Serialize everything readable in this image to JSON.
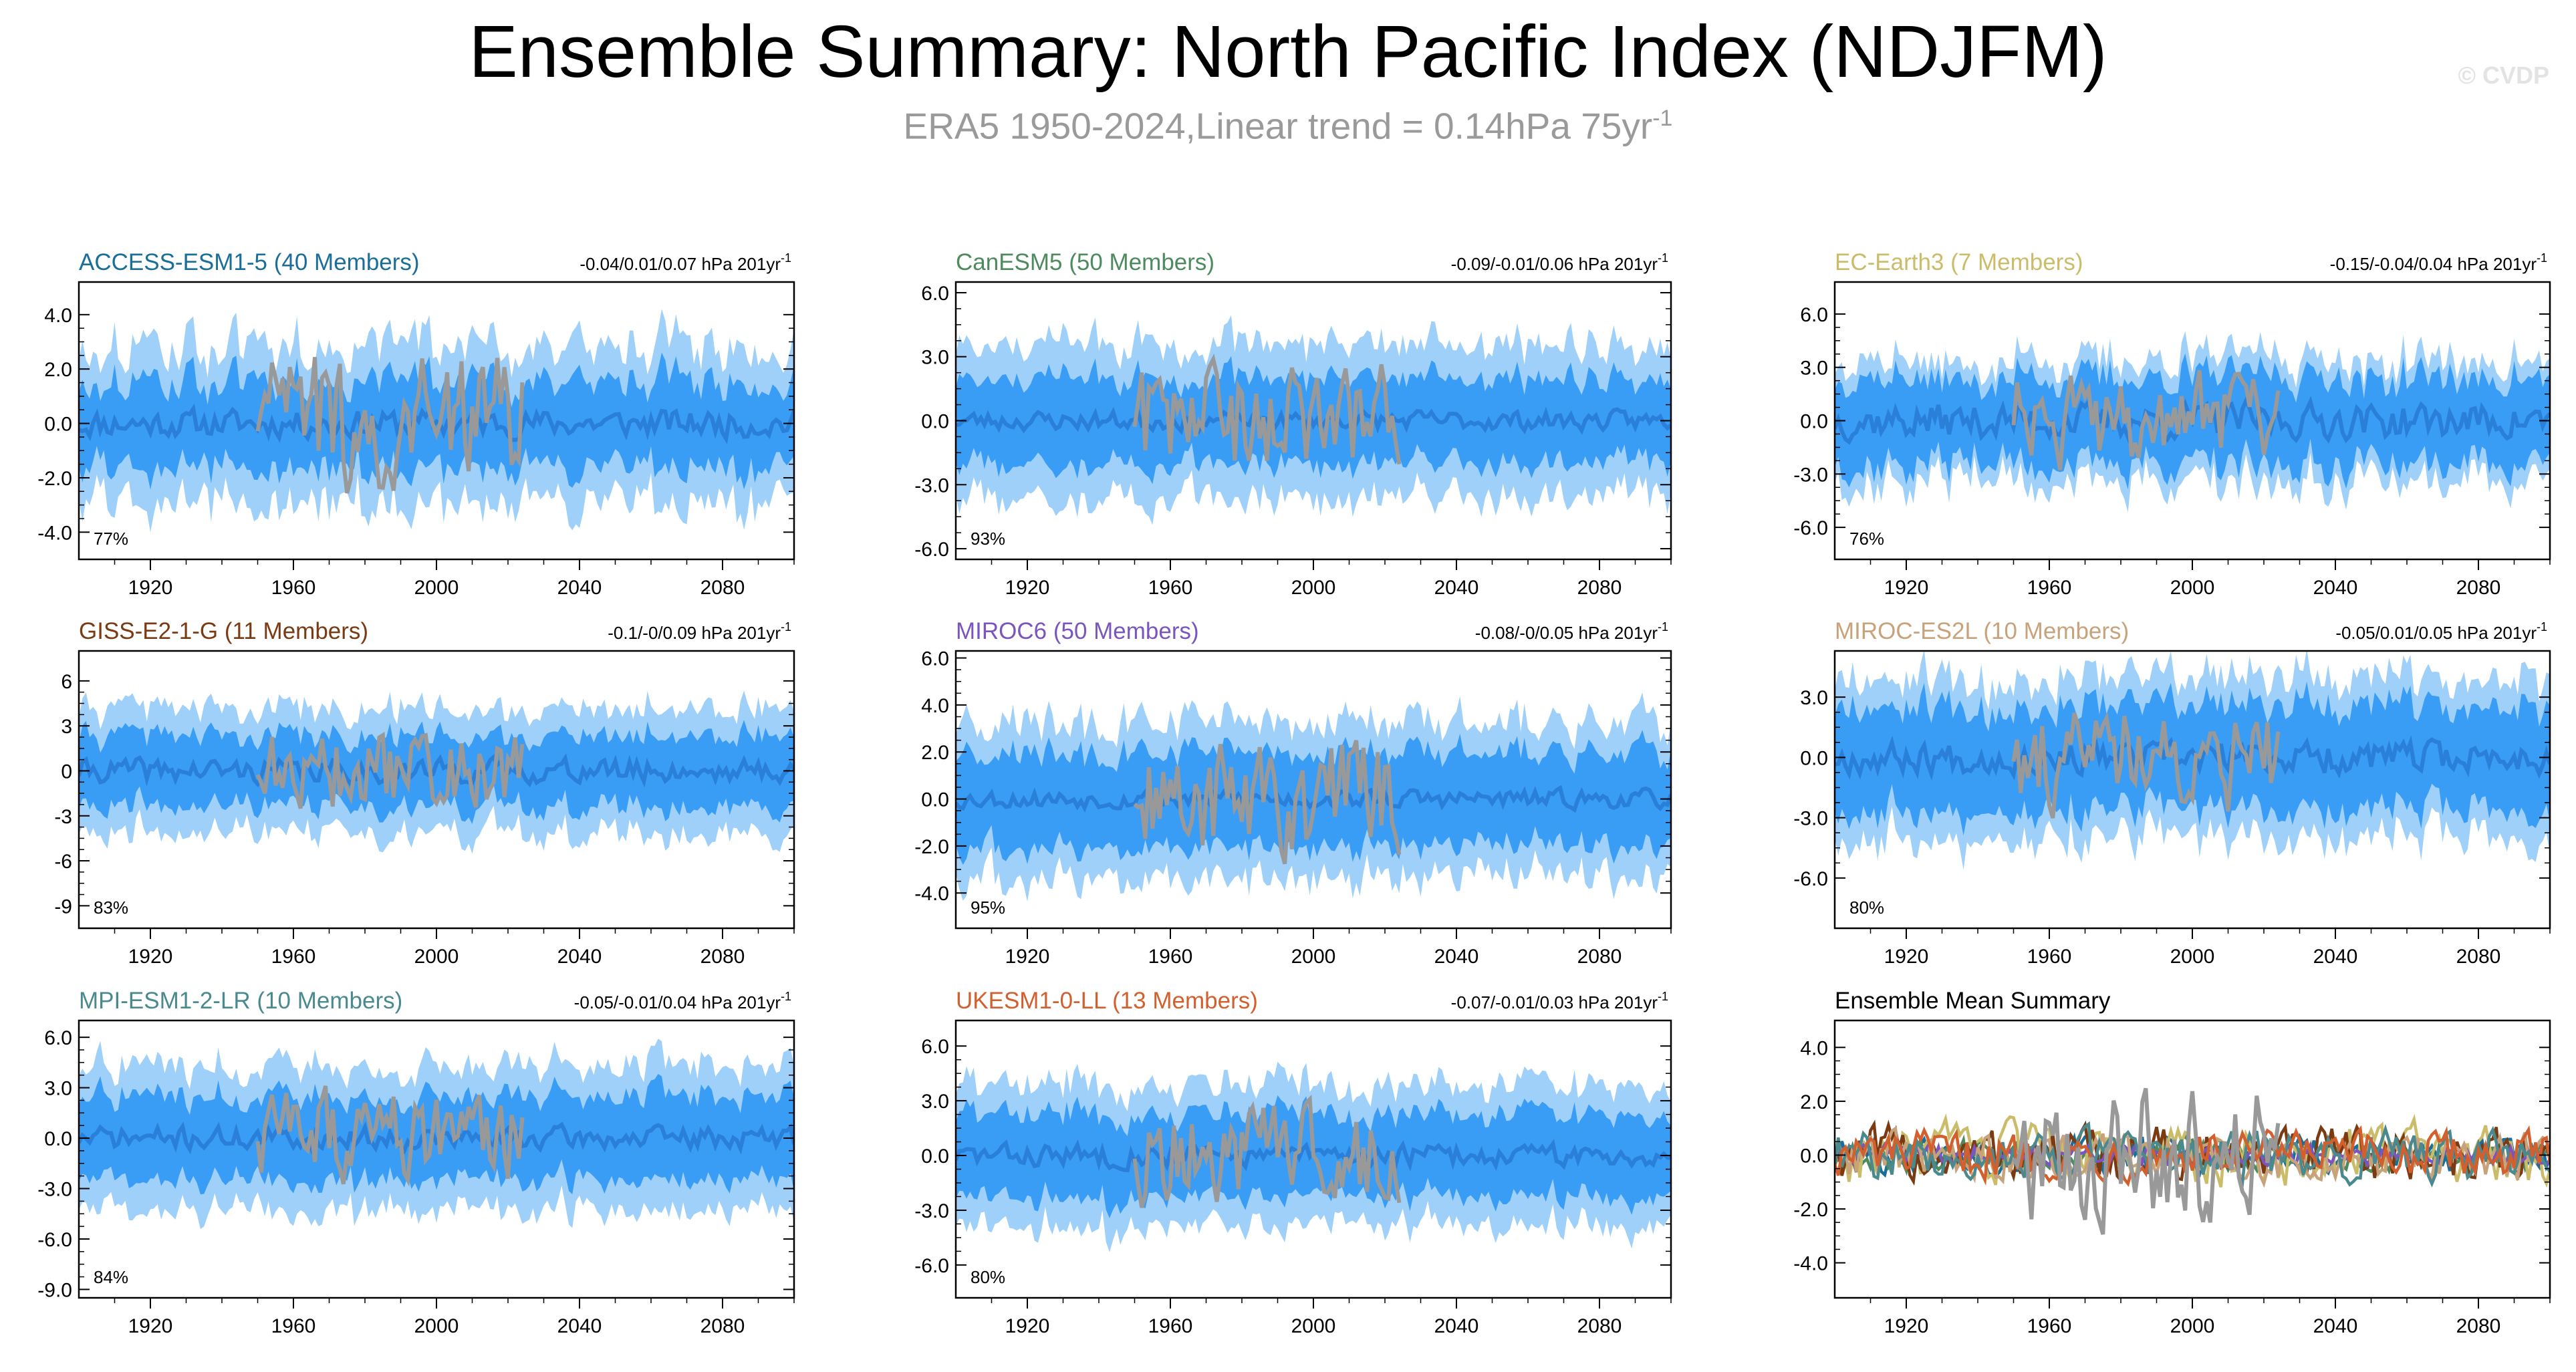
{
  "header": {
    "title": "Ensemble Summary: North Pacific Index (NDJFM)",
    "subtitle_main": "ERA5 1950-2024,Linear trend = 0.14hPa 75yr",
    "subtitle_sup": "-1",
    "copyright": "© CVDP"
  },
  "colors": {
    "outer_band": "#9fd0f9",
    "inner_band": "#3a9df5",
    "ensemble_mean": "#2a7fd8",
    "obs": "#999999",
    "axis": "#000000"
  },
  "chart_data": [
    {
      "type": "line",
      "title": "ACCESS-ESM1-5 (40 Members)",
      "title_color": "#1a6e9a",
      "trend": "-0.04/0.01/0.07 hPa 201yr",
      "trend_sup": "-1",
      "pct": "77%",
      "ylim": [
        -5.0,
        5.2
      ],
      "yticks": [
        -4,
        -2,
        0,
        2,
        4
      ],
      "ytick_labels": [
        "-4.0",
        "-2.0",
        "0.0",
        "2.0",
        "4.0"
      ],
      "xlim": [
        1900,
        2100
      ],
      "xticks": [
        1920,
        1960,
        2000,
        2040,
        2080
      ],
      "xtick_labels": [
        "1920",
        "1960",
        "2000",
        "2040",
        "2080"
      ],
      "spread": {
        "outer": 2.9,
        "inner": 1.6,
        "mean_amp": 0.45
      },
      "obs_range": [
        1950,
        2024
      ],
      "obs_amp": 2.2,
      "seed": 11
    },
    {
      "type": "line",
      "title": "CanESM5 (50 Members)",
      "title_color": "#4d8a5e",
      "trend": "-0.09/-0.01/0.06 hPa 201yr",
      "trend_sup": "-1",
      "pct": "93%",
      "ylim": [
        -6.5,
        6.5
      ],
      "yticks": [
        -6,
        -3,
        0,
        3,
        6
      ],
      "ytick_labels": [
        "-6.0",
        "-3.0",
        "0.0",
        "3.0",
        "6.0"
      ],
      "xlim": [
        1900,
        2100
      ],
      "xticks": [
        1920,
        1960,
        2000,
        2040,
        2080
      ],
      "xtick_labels": [
        "1920",
        "1960",
        "2000",
        "2040",
        "2080"
      ],
      "spread": {
        "outer": 3.6,
        "inner": 2.0,
        "mean_amp": 0.4
      },
      "obs_range": [
        1950,
        2024
      ],
      "obs_amp": 2.3,
      "seed": 23
    },
    {
      "type": "line",
      "title": "EC-Earth3 (7 Members)",
      "title_color": "#cbbc6a",
      "trend": "-0.15/-0.04/0.04 hPa 201yr",
      "trend_sup": "-1",
      "pct": "76%",
      "ylim": [
        -7.8,
        7.8
      ],
      "yticks": [
        -6,
        -3,
        0,
        3,
        6
      ],
      "ytick_labels": [
        "-6.0",
        "-3.0",
        "0.0",
        "3.0",
        "6.0"
      ],
      "xlim": [
        1900,
        2100
      ],
      "xticks": [
        1920,
        1960,
        2000,
        2040,
        2080
      ],
      "xtick_labels": [
        "1920",
        "1960",
        "2000",
        "2040",
        "2080"
      ],
      "spread": {
        "outer": 3.4,
        "inner": 2.4,
        "mean_amp": 0.9
      },
      "obs_range": [
        1950,
        2024
      ],
      "obs_amp": 2.3,
      "seed": 37
    },
    {
      "type": "line",
      "title": "GISS-E2-1-G (11 Members)",
      "title_color": "#7a3a12",
      "trend": "-0.1/-0/0.09 hPa 201yr",
      "trend_sup": "-1",
      "pct": "83%",
      "ylim": [
        -10.5,
        8.0
      ],
      "yticks": [
        -9,
        -6,
        -3,
        0,
        3,
        6
      ],
      "ytick_labels": [
        "-9",
        "-6",
        "-3",
        "0",
        "3",
        "6"
      ],
      "xlim": [
        1900,
        2100
      ],
      "xticks": [
        1920,
        1960,
        2000,
        2040,
        2080
      ],
      "xtick_labels": [
        "1920",
        "1960",
        "2000",
        "2040",
        "2080"
      ],
      "spread": {
        "outer": 4.2,
        "inner": 2.4,
        "mean_amp": 0.7
      },
      "obs_range": [
        1950,
        2024
      ],
      "obs_amp": 2.4,
      "seed": 41
    },
    {
      "type": "line",
      "title": "MIROC6 (50 Members)",
      "title_color": "#7a55c0",
      "trend": "-0.08/-0/0.05 hPa 201yr",
      "trend_sup": "-1",
      "pct": "95%",
      "ylim": [
        -5.5,
        6.3
      ],
      "yticks": [
        -4,
        -2,
        0,
        2,
        4,
        6
      ],
      "ytick_labels": [
        "-4.0",
        "-2.0",
        "0.0",
        "2.0",
        "4.0",
        "6.0"
      ],
      "xlim": [
        1900,
        2100
      ],
      "xticks": [
        1920,
        1960,
        2000,
        2040,
        2080
      ],
      "xtick_labels": [
        "1920",
        "1960",
        "2000",
        "2040",
        "2080"
      ],
      "spread": {
        "outer": 3.3,
        "inner": 2.0,
        "mean_amp": 0.35
      },
      "obs_range": [
        1950,
        2024
      ],
      "obs_amp": 2.2,
      "seed": 53
    },
    {
      "type": "line",
      "title": "MIROC-ES2L (10 Members)",
      "title_color": "#c8a27a",
      "trend": "-0.05/0.01/0.05 hPa 201yr",
      "trend_sup": "-1",
      "pct": "80%",
      "ylim": [
        -8.5,
        5.3
      ],
      "yticks": [
        -6,
        -3,
        0,
        3
      ],
      "ytick_labels": [
        "-6.0",
        "-3.0",
        "0.0",
        "3.0"
      ],
      "xlim": [
        1900,
        2100
      ],
      "xticks": [
        1920,
        1960,
        2000,
        2040,
        2080
      ],
      "xtick_labels": [
        "1920",
        "1960",
        "2000",
        "2040",
        "2080"
      ],
      "spread": {
        "outer": 4.0,
        "inner": 2.6,
        "mean_amp": 0.7
      },
      "obs_range": [
        1950,
        2024
      ],
      "obs_amp": 2.3,
      "seed": 67
    },
    {
      "type": "line",
      "title": "MPI-ESM1-2-LR (10 Members)",
      "title_color": "#4a8a8e",
      "trend": "-0.05/-0.01/0.04 hPa 201yr",
      "trend_sup": "-1",
      "pct": "84%",
      "ylim": [
        -9.5,
        7.0
      ],
      "yticks": [
        -9,
        -6,
        -3,
        0,
        3,
        6
      ],
      "ytick_labels": [
        "-9.0",
        "-6.0",
        "-3.0",
        "0.0",
        "3.0",
        "6.0"
      ],
      "xlim": [
        1900,
        2100
      ],
      "xticks": [
        1920,
        1960,
        2000,
        2040,
        2080
      ],
      "xtick_labels": [
        "1920",
        "1960",
        "2000",
        "2040",
        "2080"
      ],
      "spread": {
        "outer": 4.3,
        "inner": 2.5,
        "mean_amp": 0.6
      },
      "obs_range": [
        1950,
        2024
      ],
      "obs_amp": 2.3,
      "seed": 71
    },
    {
      "type": "line",
      "title": "UKESM1-0-LL (13 Members)",
      "title_color": "#d2602e",
      "trend": "-0.07/-0.01/0.03 hPa 201yr",
      "trend_sup": "-1",
      "pct": "80%",
      "ylim": [
        -7.8,
        7.4
      ],
      "yticks": [
        -6,
        -3,
        0,
        3,
        6
      ],
      "ytick_labels": [
        "-6.0",
        "-3.0",
        "0.0",
        "3.0",
        "6.0"
      ],
      "xlim": [
        1900,
        2100
      ],
      "xticks": [
        1920,
        1960,
        2000,
        2040,
        2080
      ],
      "xtick_labels": [
        "1920",
        "1960",
        "2000",
        "2040",
        "2080"
      ],
      "spread": {
        "outer": 3.9,
        "inner": 2.3,
        "mean_amp": 0.55
      },
      "obs_range": [
        1950,
        2024
      ],
      "obs_amp": 2.3,
      "seed": 83
    },
    {
      "type": "line",
      "title": "Ensemble Mean Summary",
      "title_color": "#000000",
      "trend": "",
      "trend_sup": "",
      "pct": "",
      "ylim": [
        -5.3,
        5.0
      ],
      "yticks": [
        -4,
        -2,
        0,
        2,
        4
      ],
      "ytick_labels": [
        "-4.0",
        "-2.0",
        "0.0",
        "2.0",
        "4.0"
      ],
      "xlim": [
        1900,
        2100
      ],
      "xticks": [
        1920,
        1960,
        2000,
        2040,
        2080
      ],
      "xtick_labels": [
        "1920",
        "1960",
        "2000",
        "2040",
        "2080"
      ],
      "series": [
        {
          "name": "ACCESS-ESM1-5",
          "color": "#1a6e9a",
          "amp": 0.6,
          "seed": 101
        },
        {
          "name": "CanESM5",
          "color": "#4d8a5e",
          "amp": 0.5,
          "seed": 102
        },
        {
          "name": "EC-Earth3",
          "color": "#cbbc6a",
          "amp": 1.0,
          "seed": 103
        },
        {
          "name": "GISS-E2-1-G",
          "color": "#7a3a12",
          "amp": 0.9,
          "seed": 104
        },
        {
          "name": "MIROC6",
          "color": "#7a55c0",
          "amp": 0.35,
          "seed": 105
        },
        {
          "name": "MIROC-ES2L",
          "color": "#c8a27a",
          "amp": 0.8,
          "seed": 106
        },
        {
          "name": "MPI-ESM1-2-LR",
          "color": "#4a8a8e",
          "amp": 0.8,
          "seed": 107
        },
        {
          "name": "UKESM1-0-LL",
          "color": "#d2602e",
          "amp": 0.75,
          "seed": 108
        }
      ],
      "obs_range": [
        1950,
        2024
      ],
      "obs_amp": 2.2,
      "seed": 97
    }
  ]
}
